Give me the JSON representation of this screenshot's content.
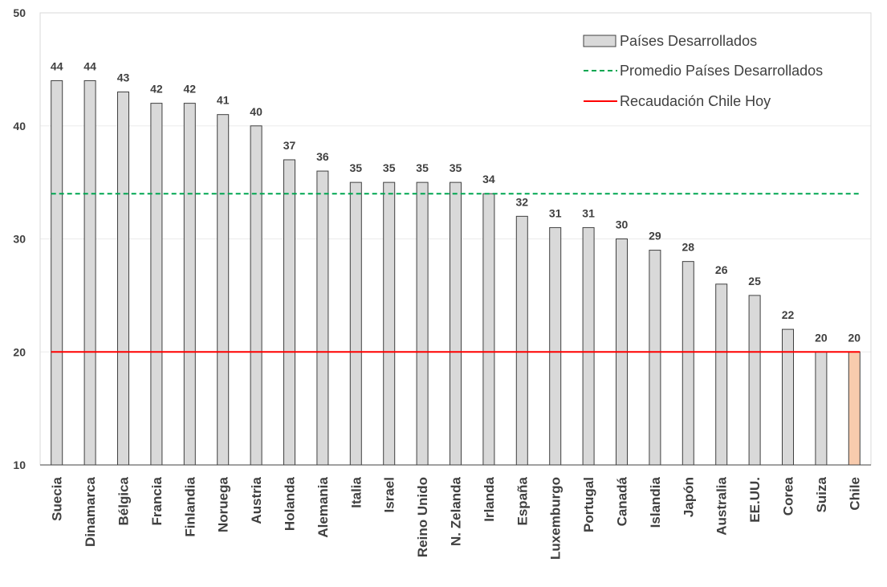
{
  "chart_data": {
    "type": "bar",
    "categories": [
      "Suecia",
      "Dinamarca",
      "Bélgica",
      "Francia",
      "Finlandia",
      "Noruega",
      "Austria",
      "Holanda",
      "Alemania",
      "Italia",
      "Israel",
      "Reino Unido",
      "N. Zelanda",
      "Irlanda",
      "España",
      "Luxemburgo",
      "Portugal",
      "Canadá",
      "Islandia",
      "Japón",
      "Australia",
      "EE.UU.",
      "Corea",
      "Suiza",
      "Chile"
    ],
    "series": [
      {
        "name": "Países Desarrollados",
        "values": [
          44,
          44,
          43,
          42,
          42,
          41,
          40,
          37,
          36,
          35,
          35,
          35,
          35,
          34,
          32,
          31,
          31,
          30,
          29,
          28,
          26,
          25,
          22,
          20,
          20
        ],
        "color": "#d9d9d9",
        "highlight": {
          "category": "Chile",
          "color": "#f8cbad"
        }
      }
    ],
    "reference_lines": [
      {
        "name": "Promedio Países Desarrollados",
        "value": 34,
        "color": "#00a651",
        "style": "dashed"
      },
      {
        "name": "Recaudación Chile Hoy",
        "value": 20,
        "color": "#ff0000",
        "style": "solid"
      }
    ],
    "data_labels": [
      "44",
      "44",
      "43",
      "42",
      "42",
      "41",
      "40",
      "37",
      "36",
      "35",
      "35",
      "35",
      "35",
      "34",
      "32",
      "31",
      "31",
      "30",
      "29",
      "28",
      "26",
      "25",
      "22",
      "20",
      "20"
    ],
    "y_ticks": [
      "10",
      "20",
      "30",
      "40",
      "50"
    ],
    "ylim": [
      10,
      50
    ],
    "title": "",
    "xlabel": "",
    "ylabel": "",
    "grid": true,
    "legend": {
      "position": "top-right",
      "entries": [
        "Países Desarrollados",
        "Promedio Países Desarrollados",
        "Recaudación Chile Hoy"
      ]
    }
  }
}
